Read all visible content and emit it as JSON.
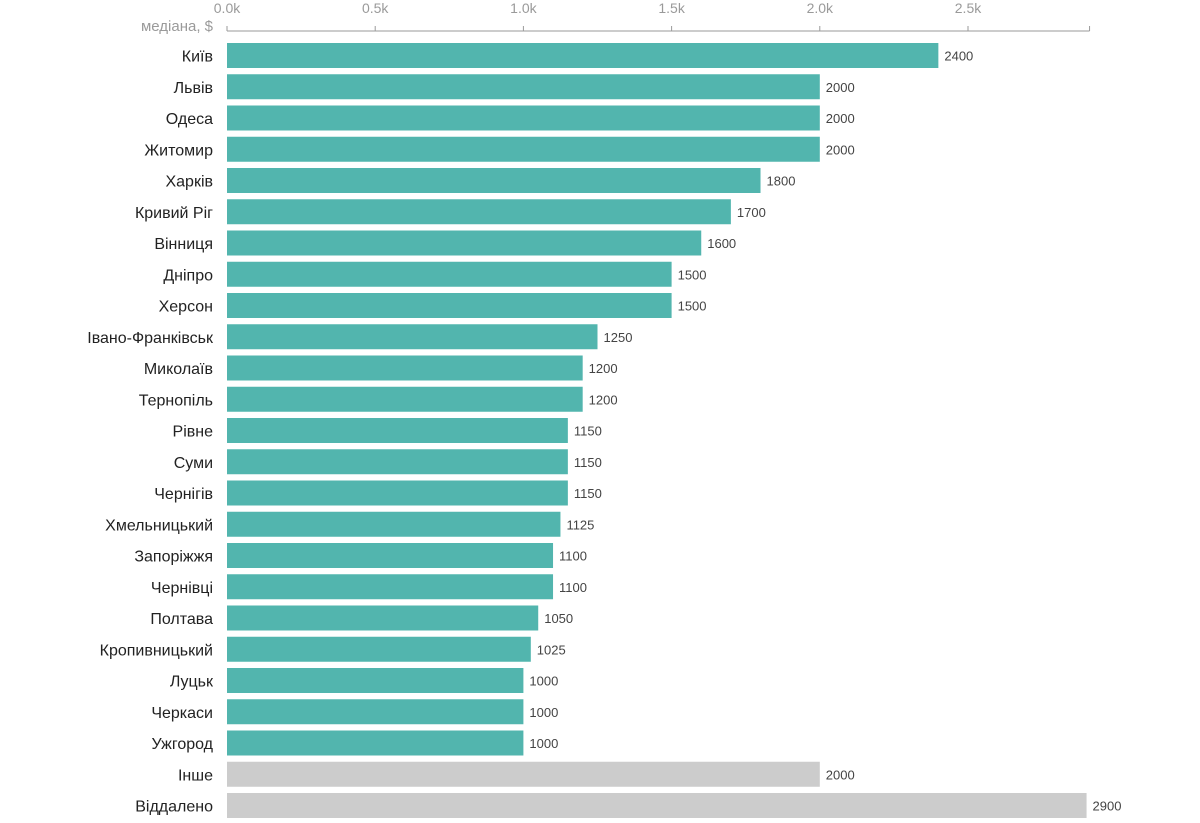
{
  "chart_data": {
    "type": "bar",
    "orientation": "horizontal",
    "title": "",
    "xlabel": "медіана, $",
    "ylabel": "",
    "xlim": [
      0,
      2900
    ],
    "x_ticks": [
      0,
      500,
      1000,
      1500,
      2000,
      2500
    ],
    "x_tick_labels": [
      "0.0k",
      "0.5k",
      "1.0k",
      "1.5k",
      "2.0k",
      "2.5k"
    ],
    "grid": false,
    "categories": [
      "Київ",
      "Львів",
      "Одеса",
      "Житомир",
      "Харків",
      "Кривий Ріг",
      "Вінниця",
      "Дніпро",
      "Херсон",
      "Івано-Франківськ",
      "Миколаїв",
      "Тернопіль",
      "Рівне",
      "Суми",
      "Чернігів",
      "Хмельницький",
      "Запоріжжя",
      "Чернівці",
      "Полтава",
      "Кропивницький",
      "Луцьк",
      "Черкаси",
      "Ужгород",
      "Інше",
      "Віддалено"
    ],
    "values": [
      2400,
      2000,
      2000,
      2000,
      1800,
      1700,
      1600,
      1500,
      1500,
      1250,
      1200,
      1200,
      1150,
      1150,
      1150,
      1125,
      1100,
      1100,
      1050,
      1025,
      1000,
      1000,
      1000,
      2000,
      2900
    ],
    "value_labels": [
      "2400",
      "2000",
      "2000",
      "2000",
      "1800",
      "1700",
      "1600",
      "1500",
      "1500",
      "1250",
      "1200",
      "1200",
      "1150",
      "1150",
      "1150",
      "1125",
      "1100",
      "1100",
      "1050",
      "1025",
      "1000",
      "1000",
      "1000",
      "2000",
      "2900"
    ],
    "bar_groups": [
      "city",
      "city",
      "city",
      "city",
      "city",
      "city",
      "city",
      "city",
      "city",
      "city",
      "city",
      "city",
      "city",
      "city",
      "city",
      "city",
      "city",
      "city",
      "city",
      "city",
      "city",
      "city",
      "city",
      "other",
      "other"
    ],
    "colors": {
      "city": "#52b5ae",
      "other": "#cccccc",
      "axis": "#9a9a9a"
    }
  }
}
